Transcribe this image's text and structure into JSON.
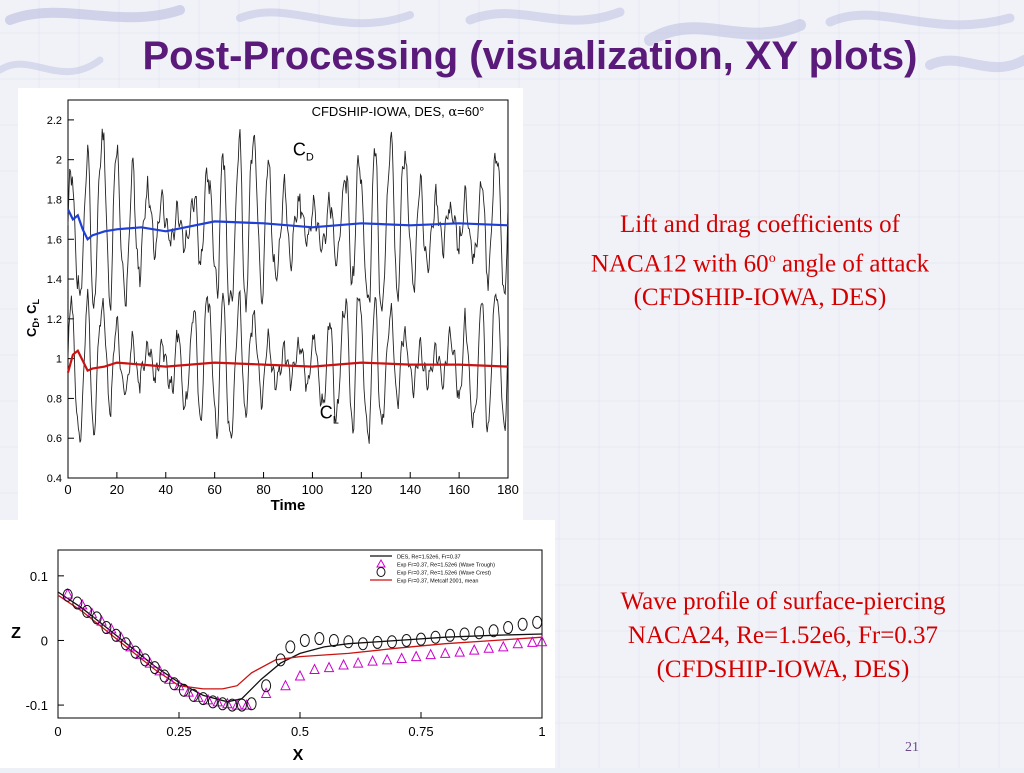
{
  "slide": {
    "title": "Post-Processing (visualization, XY plots)",
    "number": "21"
  },
  "captions": {
    "top": {
      "line1": "Lift and drag coefficients of",
      "line2": "NACA12 with 60° angle of attack",
      "line2_pre": "NACA12 with 60",
      "line2_sup": "o",
      "line2_post": " angle of attack",
      "line3": "(CFDSHIP-IOWA, DES)"
    },
    "bottom": {
      "line1": "Wave profile of  surface-piercing",
      "line2": "NACA24, Re=1.52e6, Fr=0.37",
      "line3": "(CFDSHIP-IOWA, DES)"
    }
  },
  "colors": {
    "title": "#5a1a7a",
    "caption": "#d40000",
    "cd_mean": "#1f3fd6",
    "cl_mean": "#cc1111",
    "instantaneous": "#222222",
    "exp_trough": "#cc00cc",
    "exp_crest": "#111111"
  },
  "chart_data": [
    {
      "type": "line",
      "title": "CFDSHIP-IOWA, DES, α=60°",
      "title_pre": "CFDSHIP-IOWA, DES, ",
      "title_alpha": "α",
      "title_post": "=60°",
      "xlabel": "Time",
      "ylabel_parts": [
        "C",
        "D",
        ", C",
        "L"
      ],
      "xlim": [
        0,
        180
      ],
      "ylim": [
        0.4,
        2.3
      ],
      "xticks": [
        0,
        20,
        40,
        60,
        80,
        100,
        120,
        140,
        160,
        180
      ],
      "yticks": [
        0.4,
        0.6,
        0.8,
        1,
        1.2,
        1.4,
        1.6,
        1.8,
        2,
        2.2
      ],
      "annotations": [
        {
          "text": "C",
          "sub": "D",
          "x": 92,
          "y": 2.02
        },
        {
          "text": "C",
          "sub": "L",
          "x": 103,
          "y": 0.7
        }
      ],
      "series": [
        {
          "key": "cd_inst",
          "color": "instantaneous",
          "kind": "oscillating",
          "mean": 1.67,
          "amp": 0.4,
          "period": 6.2
        },
        {
          "key": "cl_inst",
          "color": "instantaneous",
          "kind": "oscillating",
          "mean": 0.97,
          "amp": 0.33,
          "period": 6.2
        },
        {
          "key": "cd_mean",
          "color": "cd_mean",
          "x": [
            0,
            2,
            4,
            6,
            8,
            10,
            15,
            20,
            30,
            40,
            60,
            80,
            100,
            120,
            140,
            160,
            180
          ],
          "y": [
            1.75,
            1.7,
            1.72,
            1.65,
            1.6,
            1.62,
            1.64,
            1.65,
            1.66,
            1.64,
            1.69,
            1.68,
            1.66,
            1.68,
            1.67,
            1.68,
            1.67
          ]
        },
        {
          "key": "cl_mean",
          "color": "cl_mean",
          "x": [
            0,
            2,
            4,
            6,
            8,
            10,
            15,
            20,
            30,
            40,
            60,
            80,
            100,
            120,
            140,
            160,
            180
          ],
          "y": [
            0.93,
            1.02,
            1.04,
            0.99,
            0.94,
            0.95,
            0.96,
            0.98,
            0.97,
            0.96,
            0.98,
            0.97,
            0.96,
            0.98,
            0.97,
            0.97,
            0.96
          ]
        }
      ]
    },
    {
      "type": "scatter",
      "xlabel": "X",
      "ylabel": "Z",
      "xlim": [
        0,
        1
      ],
      "ylim": [
        -0.12,
        0.14
      ],
      "xticks": [
        0,
        0.25,
        0.5,
        0.75,
        1
      ],
      "xtick_labels": [
        "0",
        "0.25",
        "0.5",
        "0.75",
        "1"
      ],
      "yticks": [
        -0.1,
        0,
        0.1
      ],
      "ytick_labels": [
        "-0.1",
        "0",
        "0.1"
      ],
      "legend_position": "top-right",
      "legend": [
        {
          "label": "DES, Re=1.52e6, Fr=0.37",
          "marker": "line",
          "color": "exp_crest"
        },
        {
          "label": "Exp Fr=0.37, Re=1.52e6 (Wave Trough)",
          "marker": "triangle",
          "color": "exp_trough"
        },
        {
          "label": "Exp Fr=0.37, Re=1.52e6 (Wave Crest)",
          "marker": "diamond",
          "color": "exp_crest"
        },
        {
          "label": "Exp Fr=0.37, Metcalf 2001, mean",
          "marker": "line",
          "color": "cl_mean"
        }
      ],
      "series": [
        {
          "name": "DES",
          "type": "line",
          "color": "exp_crest",
          "x": [
            0,
            0.05,
            0.1,
            0.15,
            0.2,
            0.25,
            0.3,
            0.35,
            0.38,
            0.42,
            0.46,
            0.5,
            0.55,
            0.6,
            0.7,
            0.8,
            0.9,
            1.0
          ],
          "y": [
            0.075,
            0.05,
            0.02,
            -0.01,
            -0.04,
            -0.065,
            -0.085,
            -0.095,
            -0.09,
            -0.06,
            -0.035,
            -0.02,
            -0.01,
            -0.005,
            0.0,
            0.005,
            0.008,
            0.01
          ]
        },
        {
          "name": "Exp mean",
          "type": "line",
          "color": "cl_mean",
          "x": [
            0,
            0.05,
            0.1,
            0.15,
            0.2,
            0.25,
            0.3,
            0.34,
            0.37,
            0.4,
            0.45,
            0.5,
            0.6,
            0.7,
            0.8,
            0.9,
            1.0
          ],
          "y": [
            0.07,
            0.045,
            0.015,
            -0.015,
            -0.045,
            -0.07,
            -0.075,
            -0.075,
            -0.07,
            -0.05,
            -0.03,
            -0.025,
            -0.02,
            -0.012,
            -0.005,
            0.0,
            0.005
          ]
        },
        {
          "name": "Wave Trough",
          "type": "scatter",
          "marker": "triangle",
          "color": "exp_trough",
          "x": [
            0.02,
            0.05,
            0.07,
            0.09,
            0.11,
            0.13,
            0.15,
            0.17,
            0.19,
            0.21,
            0.23,
            0.25,
            0.27,
            0.29,
            0.31,
            0.33,
            0.35,
            0.37,
            0.39,
            0.43,
            0.47,
            0.5,
            0.53,
            0.56,
            0.59,
            0.62,
            0.65,
            0.68,
            0.71,
            0.74,
            0.77,
            0.8,
            0.83,
            0.86,
            0.89,
            0.92,
            0.95,
            0.98,
            1.0
          ],
          "y": [
            0.072,
            0.055,
            0.042,
            0.03,
            0.018,
            0.005,
            -0.01,
            -0.022,
            -0.035,
            -0.047,
            -0.06,
            -0.07,
            -0.08,
            -0.088,
            -0.092,
            -0.095,
            -0.098,
            -0.1,
            -0.1,
            -0.082,
            -0.07,
            -0.055,
            -0.045,
            -0.042,
            -0.038,
            -0.035,
            -0.032,
            -0.03,
            -0.028,
            -0.025,
            -0.022,
            -0.02,
            -0.018,
            -0.015,
            -0.012,
            -0.01,
            -0.005,
            -0.003,
            -0.002
          ]
        },
        {
          "name": "Wave Crest",
          "type": "scatter",
          "marker": "diamond",
          "color": "exp_crest",
          "x": [
            0.02,
            0.04,
            0.06,
            0.08,
            0.1,
            0.12,
            0.14,
            0.16,
            0.18,
            0.2,
            0.22,
            0.24,
            0.26,
            0.28,
            0.3,
            0.32,
            0.34,
            0.36,
            0.38,
            0.4,
            0.43,
            0.46,
            0.48,
            0.51,
            0.54,
            0.57,
            0.6,
            0.63,
            0.66,
            0.69,
            0.72,
            0.75,
            0.78,
            0.81,
            0.84,
            0.87,
            0.9,
            0.93,
            0.96,
            0.99
          ],
          "y": [
            0.07,
            0.058,
            0.045,
            0.035,
            0.02,
            0.008,
            -0.005,
            -0.018,
            -0.03,
            -0.042,
            -0.055,
            -0.067,
            -0.077,
            -0.085,
            -0.09,
            -0.095,
            -0.098,
            -0.1,
            -0.1,
            -0.098,
            -0.07,
            -0.03,
            -0.01,
            0.0,
            0.003,
            0.0,
            -0.002,
            -0.005,
            -0.003,
            -0.002,
            0.0,
            0.002,
            0.005,
            0.008,
            0.01,
            0.012,
            0.015,
            0.02,
            0.025,
            0.028
          ]
        }
      ]
    }
  ]
}
